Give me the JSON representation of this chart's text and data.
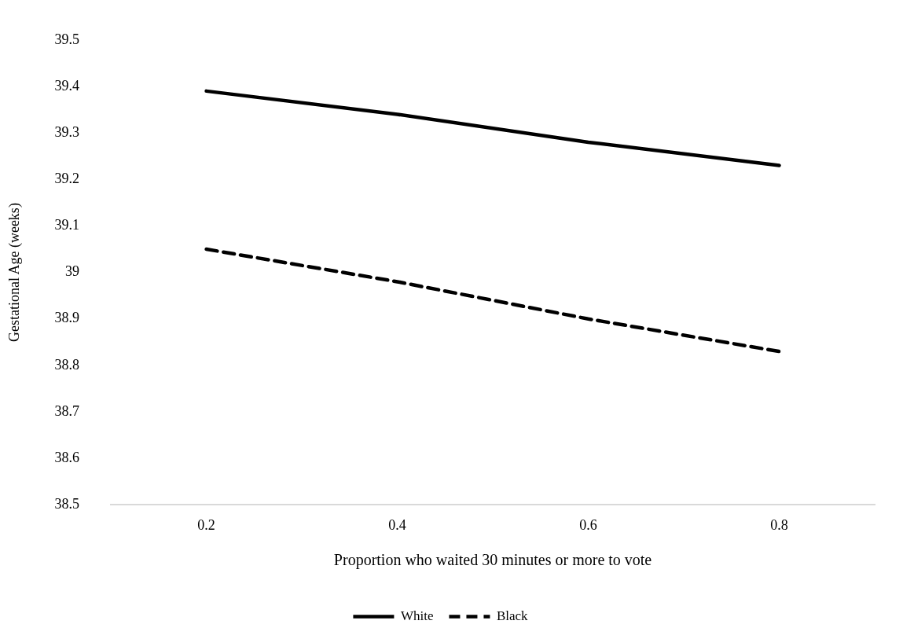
{
  "chart_data": {
    "type": "line",
    "xlabel": "Proportion who waited 30 minutes or more to vote",
    "ylabel": "Gestational Age (weeks)",
    "categories": [
      "0.2",
      "0.4",
      "0.6",
      "0.8"
    ],
    "series": [
      {
        "name": "White",
        "color": "#000000",
        "values": [
          39.39,
          39.34,
          39.28,
          39.23
        ],
        "line_style": "solid"
      },
      {
        "name": "Black",
        "color": "#000000",
        "values": [
          39.05,
          38.98,
          38.9,
          38.83
        ],
        "line_style": "dashed"
      }
    ],
    "ylim": [
      38.5,
      39.5
    ],
    "yticks": [
      38.5,
      38.6,
      38.7,
      38.8,
      38.9,
      39,
      39.1,
      39.2,
      39.3,
      39.4,
      39.5
    ],
    "grid": false,
    "legend": "bottom",
    "marker": "none"
  }
}
